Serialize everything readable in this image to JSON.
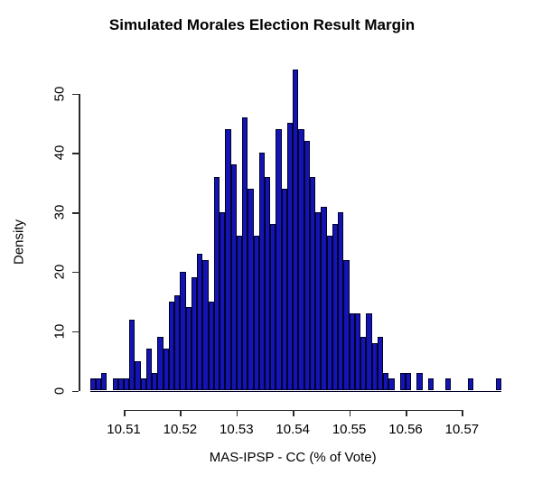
{
  "title": "Simulated Morales Election Result Margin",
  "chart_data": {
    "type": "bar",
    "subtype": "histogram",
    "title": "Simulated Morales Election Result Margin",
    "xlabel": "MAS-IPSP - CC (% of Vote)",
    "ylabel": "Density",
    "x_tick_labels": [
      "10.51",
      "10.52",
      "10.53",
      "10.54",
      "10.55",
      "10.56",
      "10.57"
    ],
    "y_tick_labels": [
      "0",
      "10",
      "20",
      "30",
      "40",
      "50"
    ],
    "xlim": [
      10.503,
      10.578
    ],
    "ylim": [
      0,
      54
    ],
    "grid": "off",
    "legend": "none",
    "bin_start": 10.504,
    "bin_width": 0.001,
    "densities": [
      2,
      2,
      3,
      0,
      2,
      2,
      2,
      12,
      5,
      2,
      7,
      3,
      9,
      7,
      15,
      16,
      20,
      14,
      19,
      23,
      22,
      15,
      36,
      30,
      44,
      38,
      26,
      46,
      34,
      26,
      40,
      36,
      28,
      44,
      34,
      45,
      54,
      44,
      42,
      36,
      30,
      31,
      26,
      28,
      30,
      22,
      13,
      13,
      9,
      13,
      8,
      9,
      3,
      2,
      0,
      3,
      3,
      0,
      3,
      0,
      2,
      0,
      0,
      2,
      0,
      0,
      0,
      2,
      0,
      0,
      0,
      0,
      2
    ],
    "bar_fill_color": "#1414b4",
    "bar_border_color": "#000028",
    "axis_color": "#2b2b2b",
    "background_color": "#ffffff"
  }
}
